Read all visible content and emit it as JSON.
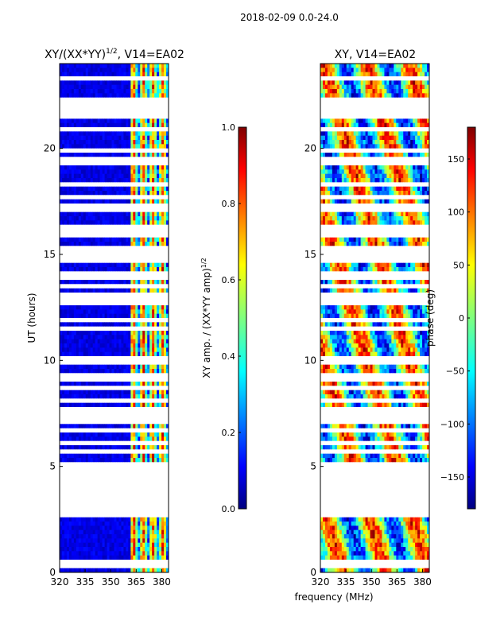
{
  "figure": {
    "suptitle": "2018-02-09 0.0-24.0"
  },
  "chart_data": [
    {
      "type": "heatmap",
      "title": "XY/(XX*YY)",
      "title_sup": "1/2",
      "title_suffix": ", V14=EA02",
      "xlabel": "",
      "ylabel": "UT (hours)",
      "xlim": [
        320,
        384
      ],
      "ylim": [
        0,
        24
      ],
      "x_ticks": [
        320,
        335,
        350,
        365,
        380
      ],
      "y_ticks": [
        0,
        5,
        10,
        15,
        20
      ],
      "colorbar": {
        "label": "XY amp. / (XX*YY amp)",
        "label_sup": "1/2",
        "range": [
          0.0,
          1.0
        ],
        "ticks": [
          0.0,
          0.2,
          0.4,
          0.6,
          0.8,
          1.0
        ],
        "tick_labels": [
          "0.0",
          "0.2",
          "0.4",
          "0.6",
          "0.8",
          "1.0"
        ]
      },
      "colormap": "jet",
      "description_of_values": "low amplitude (~0.05-0.15) below 362 MHz, high amplitude bands (0.4-1.0) between 362-384 MHz"
    },
    {
      "type": "heatmap",
      "title": "XY, V14=EA02",
      "xlabel": "frequency (MHz)",
      "ylabel": "",
      "xlim": [
        320,
        384
      ],
      "ylim": [
        0,
        24
      ],
      "x_ticks": [
        320,
        335,
        350,
        365,
        380
      ],
      "y_ticks": [
        0,
        5,
        10,
        15,
        20
      ],
      "colorbar": {
        "label": "phase (deg)",
        "range": [
          -180,
          180
        ],
        "ticks": [
          -150,
          -100,
          -50,
          0,
          50,
          100,
          150
        ],
        "tick_labels": [
          "−150",
          "−100",
          "−50",
          "0",
          "50",
          "100",
          "150"
        ]
      },
      "colormap": "jet",
      "description_of_values": "phase values spanning -180 to 180 degrees, highly variable"
    }
  ]
}
